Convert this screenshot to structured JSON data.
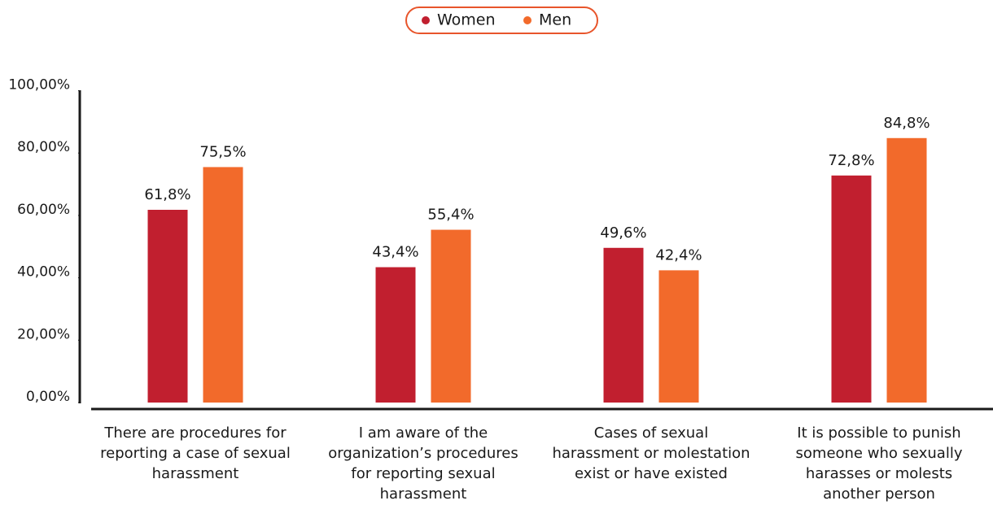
{
  "chart_data": {
    "type": "bar",
    "categories": [
      "There are procedures for reporting a case of sexual harassment",
      "I am aware of the organization’s procedures for reporting sexual harassment",
      "Cases of sexual harassment or molestation exist or have existed",
      "It is possible to punish someone who sexually harasses or molests another person"
    ],
    "series": [
      {
        "name": "Women",
        "color": "#c11f2f",
        "values": [
          61.8,
          43.4,
          49.6,
          72.8
        ],
        "value_labels": [
          "61,8%",
          "43,4%",
          "49,6%",
          "72,8%"
        ]
      },
      {
        "name": "Men",
        "color": "#f26a2b",
        "values": [
          75.5,
          55.4,
          42.4,
          84.8
        ],
        "value_labels": [
          "75,5%",
          "55,4%",
          "42,4%",
          "84,8%"
        ]
      }
    ],
    "ylim": [
      0,
      100
    ],
    "yticks": [
      {
        "value": 0,
        "label": "0,00%"
      },
      {
        "value": 20,
        "label": "20,00%"
      },
      {
        "value": 40,
        "label": "40,00%"
      },
      {
        "value": 60,
        "label": "60,00%"
      },
      {
        "value": 80,
        "label": "80,00%"
      },
      {
        "value": 100,
        "label": "100,00%"
      }
    ],
    "legend": "top",
    "grid": false
  }
}
